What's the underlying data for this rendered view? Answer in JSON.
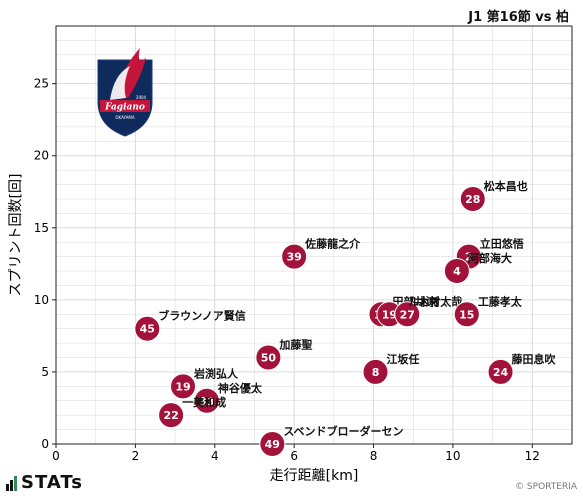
{
  "header": {
    "title": "J1 第16節 vs 柏"
  },
  "footer": {
    "brand": "STATs",
    "copyright": "© SPORTERIA"
  },
  "badge": {
    "text": "Fagiano",
    "year": "2004",
    "city": "OKAYAMA",
    "icon": "fagiano-okayama-crest"
  },
  "colors": {
    "marker": "#a3123a",
    "marker_text": "#ffffff",
    "grid": "#d9d9d9",
    "axis": "#222222"
  },
  "chart_data": {
    "type": "scatter",
    "xlabel": "走行距離[km]",
    "ylabel": "スプリント回数[回]",
    "xlim": [
      0,
      13
    ],
    "ylim": [
      0,
      29
    ],
    "x_ticks": [
      0,
      2,
      4,
      6,
      8,
      10,
      12
    ],
    "y_ticks": [
      0,
      5,
      10,
      15,
      20,
      25
    ],
    "grid": true,
    "points": [
      {
        "number": "28",
        "name": "松本昌也",
        "x": 10.5,
        "y": 17
      },
      {
        "number": "2",
        "name": "立田悠悟",
        "x": 10.4,
        "y": 13
      },
      {
        "number": "4",
        "name": "阿部海大",
        "x": 10.1,
        "y": 12
      },
      {
        "number": "39",
        "name": "佐藤龍之介",
        "x": 6.0,
        "y": 13
      },
      {
        "number": "45",
        "name": "ブラウンノア賢信",
        "x": 2.3,
        "y": 8
      },
      {
        "number": "18",
        "name": "田部井涼",
        "x": 8.2,
        "y": 9
      },
      {
        "number": "19",
        "name": "",
        "x": 8.4,
        "y": 9
      },
      {
        "number": "27",
        "name": "木村太哉",
        "x": 8.85,
        "y": 9
      },
      {
        "number": "",
        "name": "ルカオ",
        "x": 8.6,
        "y": 9
      },
      {
        "number": "15",
        "name": "工藤孝太",
        "x": 10.35,
        "y": 9
      },
      {
        "number": "50",
        "name": "加藤聖",
        "x": 5.35,
        "y": 6
      },
      {
        "number": "8",
        "name": "江坂任",
        "x": 8.05,
        "y": 5
      },
      {
        "number": "24",
        "name": "藤田息吹",
        "x": 11.2,
        "y": 5
      },
      {
        "number": "19",
        "name": "岩渕弘人",
        "x": 3.2,
        "y": 4
      },
      {
        "number": "33",
        "name": "神谷優太",
        "x": 3.8,
        "y": 3
      },
      {
        "number": "22",
        "name": "一美和成",
        "x": 2.9,
        "y": 2
      },
      {
        "number": "49",
        "name": "スベンドブローダーセン",
        "x": 5.45,
        "y": 0
      }
    ]
  }
}
